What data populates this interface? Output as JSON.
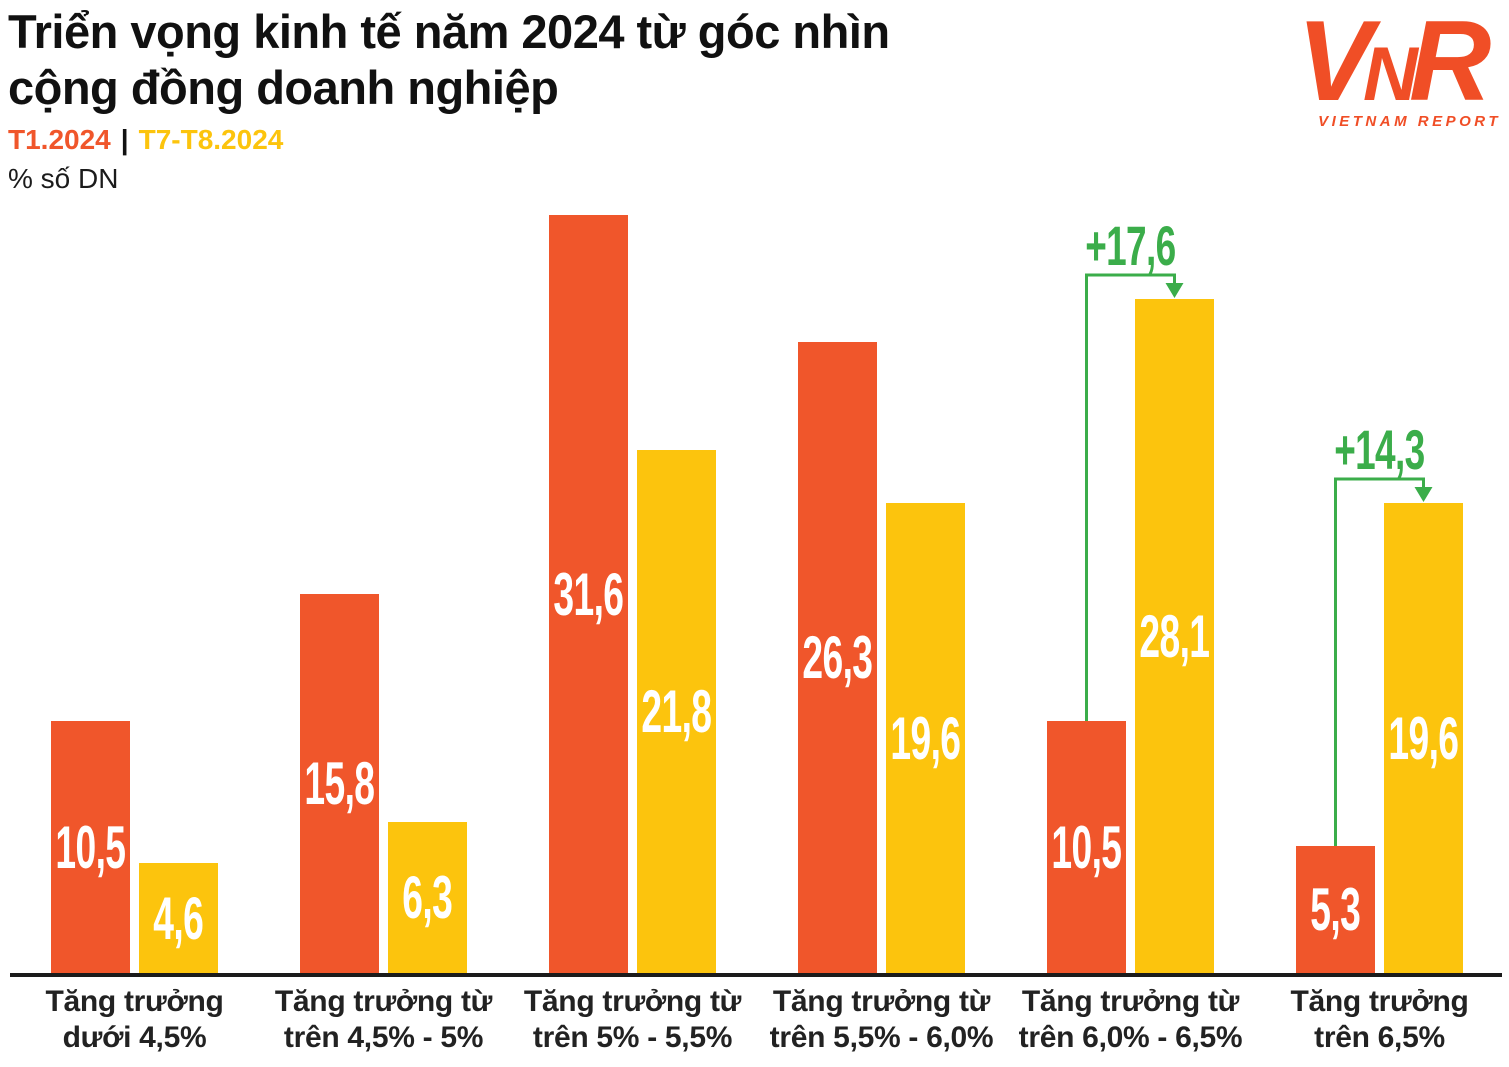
{
  "header": {
    "title_line1": "Triển vọng kinh tế năm 2024 từ góc nhìn",
    "title_line2": "cộng đồng doanh nghiệp",
    "legend": {
      "items": [
        {
          "label": "T1.2024",
          "color": "#F0562B"
        },
        {
          "label": "T7-T8.2024",
          "color": "#FCC40D"
        }
      ],
      "separator": "|"
    },
    "unit_label": "% số DN"
  },
  "logo": {
    "letters": [
      "V",
      "N",
      "R"
    ],
    "subtitle": "VIETNAM REPORT",
    "color": "#F04E26"
  },
  "chart_data": {
    "type": "bar",
    "title": "Triển vọng kinh tế năm 2024 từ góc nhìn cộng đồng doanh nghiệp",
    "ylabel": "% số DN",
    "ylim": [
      0,
      33
    ],
    "grid": false,
    "legend_position": "top-left",
    "categories": [
      [
        "Tăng trưởng",
        "dưới 4,5%"
      ],
      [
        "Tăng trưởng từ",
        "trên 4,5% - 5%"
      ],
      [
        "Tăng trưởng từ",
        "trên 5% - 5,5%"
      ],
      [
        "Tăng trưởng từ",
        "trên 5,5% - 6,0%"
      ],
      [
        "Tăng trưởng từ",
        "trên 6,0% - 6,5%"
      ],
      [
        "Tăng trưởng",
        "trên 6,5%"
      ]
    ],
    "series": [
      {
        "name": "T1.2024",
        "color": "#F0562B",
        "values": [
          10.5,
          15.8,
          31.6,
          26.3,
          10.5,
          5.3
        ],
        "labels": [
          "10,5",
          "15,8",
          "31,6",
          "26,3",
          "10,5",
          "5,3"
        ]
      },
      {
        "name": "T7-T8.2024",
        "color": "#FCC40D",
        "values": [
          4.6,
          6.3,
          21.8,
          19.6,
          28.1,
          19.6
        ],
        "labels": [
          "4,6",
          "6,3",
          "21,8",
          "19,6",
          "28,1",
          "19,6"
        ]
      }
    ],
    "annotations": [
      {
        "group_index": 4,
        "text": "+17,6",
        "color": "#3BAD4A"
      },
      {
        "group_index": 5,
        "text": "+14,3",
        "color": "#3BAD4A"
      }
    ]
  }
}
